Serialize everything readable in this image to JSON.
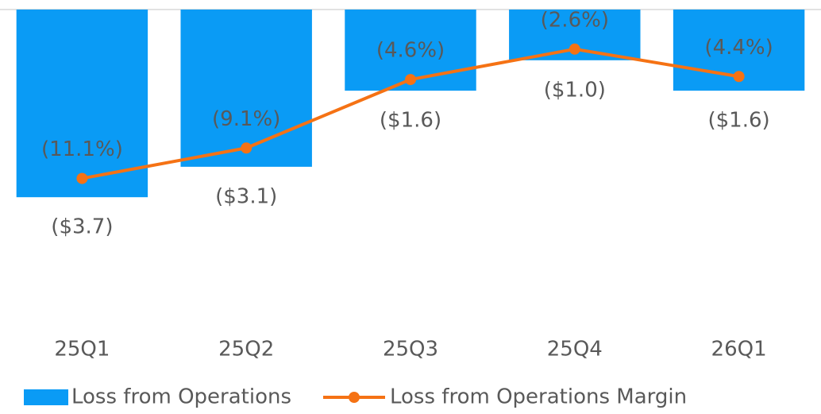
{
  "chart_data": {
    "type": "bar",
    "categories": [
      "25Q1",
      "25Q2",
      "25Q3",
      "25Q4",
      "26Q1"
    ],
    "series": [
      {
        "name": "Loss from Operations",
        "type": "bar",
        "color": "#0a9bf5",
        "values": [
          -3.7,
          -3.1,
          -1.6,
          -1.0,
          -1.6
        ],
        "value_labels": [
          "($3.7)",
          "($3.1)",
          "($1.6)",
          "($1.0)",
          "($1.6)"
        ]
      },
      {
        "name": "Loss from Operations Margin",
        "type": "line",
        "axis": "y2",
        "color": "#f57214",
        "values": [
          -11.1,
          -9.1,
          -4.6,
          -2.6,
          -4.4
        ],
        "value_labels": [
          "(11.1%)",
          "(9.1%)",
          "(4.6%)",
          "(2.6%)",
          "(4.4%)"
        ]
      }
    ],
    "ylim": [
      -6,
      0
    ],
    "y2lim": [
      -20,
      0
    ],
    "legend": "bottom"
  }
}
